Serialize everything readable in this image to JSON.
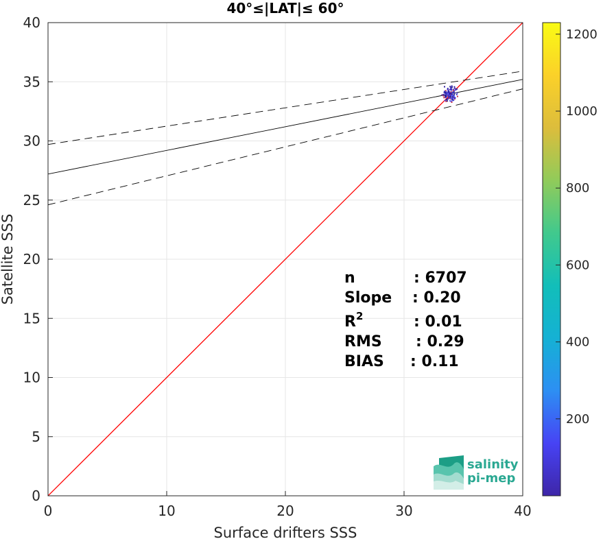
{
  "chart_data": {
    "type": "scatter",
    "title": "40°≤|LAT|≤ 60°",
    "xlabel": "Surface drifters SSS",
    "ylabel": "Satellite SSS",
    "xlim": [
      0,
      40
    ],
    "ylim": [
      0,
      40
    ],
    "x_ticks": [
      0,
      10,
      20,
      30,
      40
    ],
    "y_ticks": [
      0,
      5,
      10,
      15,
      20,
      25,
      30,
      35,
      40
    ],
    "grid": true,
    "density_cloud": {
      "x_range": [
        32.8,
        34.2
      ],
      "y_range": [
        33.2,
        34.7
      ],
      "center": [
        33.8,
        34.0
      ]
    },
    "lines": [
      {
        "kind": "identity",
        "color": "#ff0000",
        "style": "solid",
        "points": [
          [
            0,
            0
          ],
          [
            40,
            40
          ]
        ]
      },
      {
        "kind": "regression",
        "color": "#000000",
        "style": "solid",
        "points": [
          [
            0,
            27.2
          ],
          [
            40,
            35.2
          ]
        ]
      },
      {
        "kind": "confidence-upper",
        "color": "#000000",
        "style": "dashed",
        "points": [
          [
            0,
            29.7
          ],
          [
            40,
            35.9
          ]
        ]
      },
      {
        "kind": "confidence-lower",
        "color": "#000000",
        "style": "dashed",
        "points": [
          [
            0,
            24.6
          ],
          [
            40,
            34.4
          ]
        ]
      }
    ],
    "colorbar": {
      "ticks": [
        200,
        400,
        600,
        800,
        1000,
        1200
      ],
      "range": [
        0,
        1230
      ],
      "colormap": [
        "#3e26a8",
        "#4743f4",
        "#2d8ff3",
        "#15b1d4",
        "#12beb9",
        "#41c98d",
        "#91cb5a",
        "#dcbd3c",
        "#fbd129",
        "#f9fb14"
      ]
    },
    "stats": [
      {
        "label": "n",
        "value": ": 6707"
      },
      {
        "label": "Slope",
        "value": ": 0.20"
      },
      {
        "label": "R",
        "sup": "2",
        "value": ": 0.01"
      },
      {
        "label": "RMS",
        "value": ": 0.29"
      },
      {
        "label": "BIAS",
        "value": ": 0.11"
      }
    ]
  },
  "logo": {
    "line1": "salinity",
    "line2": "pi-mep",
    "color": "#2aa892"
  }
}
